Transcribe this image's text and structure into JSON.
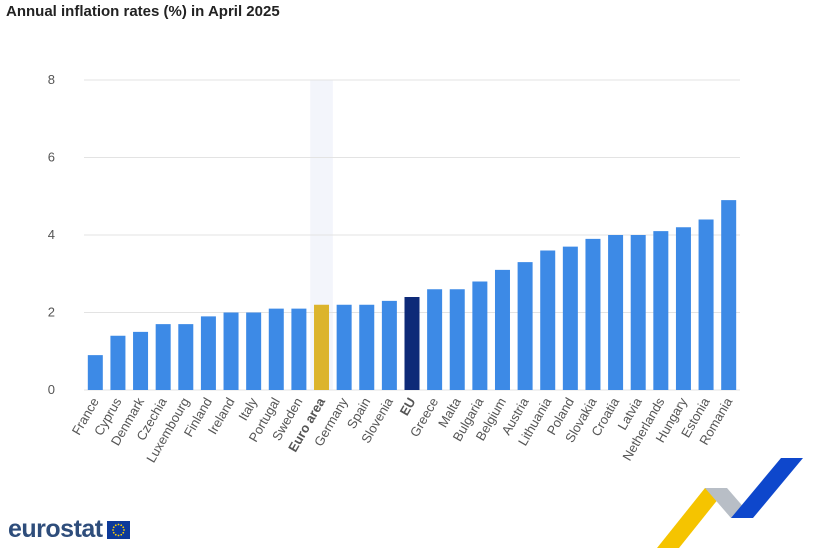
{
  "chart_data": {
    "type": "bar",
    "title": "Annual inflation rates (%) in April 2025",
    "categories": [
      "France",
      "Cyprus",
      "Denmark",
      "Czechia",
      "Luxembourg",
      "Finland",
      "Ireland",
      "Italy",
      "Portugal",
      "Sweden",
      "Euro area",
      "Germany",
      "Spain",
      "Slovenia",
      "EU",
      "Greece",
      "Malta",
      "Bulgaria",
      "Belgium",
      "Austria",
      "Lithuania",
      "Poland",
      "Slovakia",
      "Croatia",
      "Latvia",
      "Netherlands",
      "Hungary",
      "Estonia",
      "Romania"
    ],
    "values": [
      0.9,
      1.4,
      1.5,
      1.7,
      1.7,
      1.9,
      2.0,
      2.0,
      2.1,
      2.1,
      2.2,
      2.2,
      2.2,
      2.3,
      2.4,
      2.6,
      2.6,
      2.8,
      3.1,
      3.3,
      3.6,
      3.7,
      3.9,
      4.0,
      4.0,
      4.1,
      4.2,
      4.4,
      4.9
    ],
    "highlight": {
      "Euro area": "#dcb42c",
      "EU": "#0e2a78"
    },
    "bold_categories": [
      "Euro area",
      "EU"
    ],
    "bar_color": "#3d8ae6",
    "ylim": [
      0,
      8
    ],
    "yticks": [
      0,
      2,
      4,
      6,
      8
    ],
    "xlabel": "",
    "ylabel": "",
    "grid": true,
    "legend": "none"
  },
  "branding": {
    "logo_text": "eurostat"
  }
}
